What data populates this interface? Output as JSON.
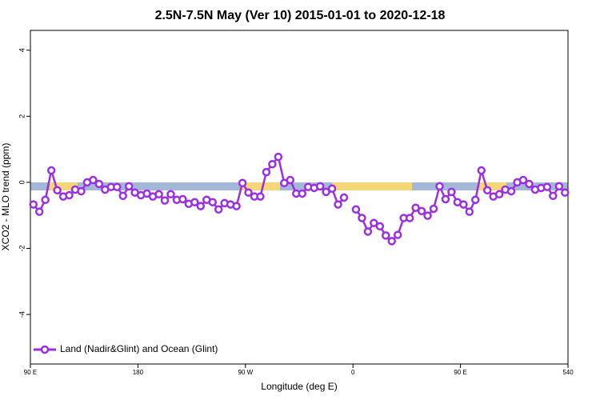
{
  "chart_data": {
    "type": "line",
    "title": "2.5N-7.5N May (Ver 10)   2015-01-01 to 2020-12-18",
    "x_label": "Longitude (deg E)",
    "y_label": "XCO2 - MLO trend (ppm)",
    "x": [
      92.5,
      97.5,
      102.5,
      107.5,
      112.5,
      117.5,
      122.5,
      127.5,
      132.5,
      137.5,
      142.5,
      147.5,
      152.5,
      157.5,
      162.5,
      167.5,
      172.5,
      177.5,
      182.5,
      187.5,
      192.5,
      197.5,
      202.5,
      207.5,
      212.5,
      217.5,
      222.5,
      227.5,
      232.5,
      237.5,
      242.5,
      247.5,
      252.5,
      257.5,
      262.5,
      267.5,
      272.5,
      277.5,
      282.5,
      287.5,
      292.5,
      297.5,
      302.5,
      307.5,
      312.5,
      317.5,
      322.5,
      327.5,
      332.5,
      337.5,
      342.5,
      347.5,
      352.5,
      357.5,
      362.5,
      367.5,
      372.5,
      377.5,
      382.5,
      387.5,
      392.5,
      397.5,
      402.5,
      407.5,
      412.5,
      417.5,
      422.5,
      427.5,
      432.5,
      437.5,
      442.5,
      447.5,
      452.5,
      457.5,
      462.5,
      467.5,
      472.5,
      477.5,
      482.5,
      487.5,
      492.5,
      497.5,
      502.5,
      507.5,
      512.5,
      517.5,
      522.5,
      527.5,
      532.5,
      537.5
    ],
    "series": [
      {
        "name": "Land (Nadir&Glint) and Ocean (Glint)",
        "color": "#9b30e0",
        "values": [
          -0.67,
          -0.89,
          -0.53,
          0.36,
          -0.24,
          -0.43,
          -0.39,
          -0.22,
          -0.27,
          0,
          0.07,
          -0.05,
          -0.22,
          -0.14,
          -0.14,
          -0.41,
          -0.12,
          -0.31,
          -0.39,
          -0.34,
          -0.43,
          -0.36,
          -0.55,
          -0.36,
          -0.53,
          -0.51,
          -0.65,
          -0.6,
          -0.72,
          -0.53,
          -0.6,
          -0.82,
          -0.63,
          -0.67,
          -0.72,
          -0.02,
          -0.31,
          -0.43,
          -0.43,
          0.31,
          0.55,
          0.77,
          -0.02,
          0.07,
          -0.34,
          -0.34,
          -0.14,
          -0.17,
          -0.12,
          -0.29,
          -0.19,
          -0.67,
          -0.46,
          null,
          -0.82,
          -1.08,
          -1.49,
          -1.23,
          -1.33,
          -1.61,
          -1.78,
          -1.59,
          -1.08,
          -1.08,
          -0.77,
          -0.87,
          -1.01,
          -0.8,
          -0.12,
          -0.51,
          -0.29,
          -0.6,
          -0.67,
          -0.89,
          -0.53,
          0.36,
          -0.24,
          -0.43,
          -0.36,
          -0.22,
          -0.27,
          0,
          0.07,
          -0.05,
          -0.22,
          -0.17,
          -0.14,
          -0.41,
          -0.12,
          -0.31
        ]
      }
    ],
    "xlim": [
      90,
      540
    ],
    "xticks": [
      {
        "value": 90,
        "label": "90 E"
      },
      180,
      {
        "value": 270,
        "label": "90 W"
      },
      {
        "value": 360,
        "label": "0"
      },
      {
        "value": 450,
        "label": "90 E"
      },
      540
    ],
    "ylim": [
      -5.5,
      4.6
    ],
    "yticks": [
      -4,
      -2,
      0,
      2,
      4
    ],
    "legend": "bottom-left"
  }
}
